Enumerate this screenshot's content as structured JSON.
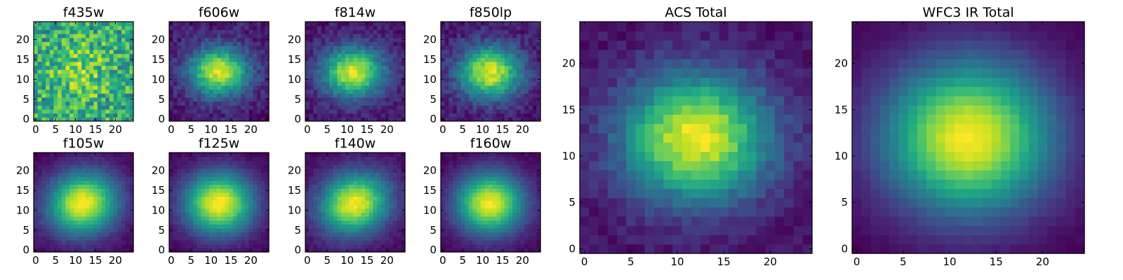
{
  "chart_data": [
    {
      "type": "heatmap",
      "title": "f435w",
      "xticks": [
        "0",
        "5",
        "10",
        "15",
        "20"
      ],
      "yticks": [
        "0",
        "5",
        "10",
        "15",
        "20"
      ],
      "grid": false,
      "colormap": "viridis",
      "extent": [
        0,
        24
      ],
      "center": [
        11.5,
        11.8
      ],
      "sigma_x": 6.0,
      "sigma_y": 6.0,
      "noise": 0.55,
      "tilt": 0.0,
      "background": 0.55,
      "seed": 1
    },
    {
      "type": "heatmap",
      "title": "f606w",
      "xticks": [
        "0",
        "5",
        "10",
        "15",
        "20"
      ],
      "yticks": [
        "0",
        "5",
        "10",
        "15",
        "20"
      ],
      "grid": false,
      "colormap": "viridis",
      "extent": [
        0,
        24
      ],
      "center": [
        12.0,
        12.0
      ],
      "sigma_x": 5.2,
      "sigma_y": 4.2,
      "noise": 0.09,
      "tilt": 0.0,
      "background": 0.05,
      "seed": 2
    },
    {
      "type": "heatmap",
      "title": "f814w",
      "xticks": [
        "0",
        "5",
        "10",
        "15",
        "20"
      ],
      "yticks": [
        "0",
        "5",
        "10",
        "15",
        "20"
      ],
      "grid": false,
      "colormap": "viridis",
      "extent": [
        0,
        24
      ],
      "center": [
        11.5,
        11.8
      ],
      "sigma_x": 5.4,
      "sigma_y": 4.4,
      "noise": 0.08,
      "tilt": 0.0,
      "background": 0.05,
      "seed": 3
    },
    {
      "type": "heatmap",
      "title": "f850lp",
      "xticks": [
        "0",
        "5",
        "10",
        "15",
        "20"
      ],
      "yticks": [
        "0",
        "5",
        "10",
        "15",
        "20"
      ],
      "grid": false,
      "colormap": "viridis",
      "extent": [
        0,
        24
      ],
      "center": [
        11.8,
        11.8
      ],
      "sigma_x": 5.4,
      "sigma_y": 4.5,
      "noise": 0.09,
      "tilt": 0.0,
      "background": 0.05,
      "seed": 4
    },
    {
      "type": "heatmap",
      "title": "ACS Total",
      "xticks": [
        "0",
        "5",
        "10",
        "15",
        "20"
      ],
      "yticks": [
        "0",
        "5",
        "10",
        "15",
        "20"
      ],
      "grid": false,
      "colormap": "viridis",
      "extent": [
        0,
        24
      ],
      "center": [
        12.0,
        12.0
      ],
      "sigma_x": 5.6,
      "sigma_y": 4.8,
      "noise": 0.06,
      "tilt": 0.0,
      "background": 0.05,
      "seed": 5
    },
    {
      "type": "heatmap",
      "title": "f105w",
      "xticks": [
        "0",
        "5",
        "10",
        "15",
        "20"
      ],
      "yticks": [
        "0",
        "5",
        "10",
        "15",
        "20"
      ],
      "grid": false,
      "colormap": "viridis",
      "extent": [
        0,
        24
      ],
      "center": [
        11.8,
        11.8
      ],
      "sigma_x": 6.2,
      "sigma_y": 5.4,
      "noise": 0.03,
      "tilt": 0.25,
      "background": 0.02,
      "seed": 6
    },
    {
      "type": "heatmap",
      "title": "f125w",
      "xticks": [
        "0",
        "5",
        "10",
        "15",
        "20"
      ],
      "yticks": [
        "0",
        "5",
        "10",
        "15",
        "20"
      ],
      "grid": false,
      "colormap": "viridis",
      "extent": [
        0,
        24
      ],
      "center": [
        12.0,
        11.8
      ],
      "sigma_x": 6.2,
      "sigma_y": 5.5,
      "noise": 0.03,
      "tilt": 0.0,
      "background": 0.02,
      "seed": 7
    },
    {
      "type": "heatmap",
      "title": "f140w",
      "xticks": [
        "0",
        "5",
        "10",
        "15",
        "20"
      ],
      "yticks": [
        "0",
        "5",
        "10",
        "15",
        "20"
      ],
      "grid": false,
      "colormap": "viridis",
      "extent": [
        0,
        24
      ],
      "center": [
        11.8,
        11.8
      ],
      "sigma_x": 6.2,
      "sigma_y": 5.2,
      "noise": 0.04,
      "tilt": 0.35,
      "background": 0.02,
      "seed": 8
    },
    {
      "type": "heatmap",
      "title": "f160w",
      "xticks": [
        "0",
        "5",
        "10",
        "15",
        "20"
      ],
      "yticks": [
        "0",
        "5",
        "10",
        "15",
        "20"
      ],
      "grid": false,
      "colormap": "viridis",
      "extent": [
        0,
        24
      ],
      "center": [
        11.8,
        11.8
      ],
      "sigma_x": 6.0,
      "sigma_y": 5.4,
      "noise": 0.03,
      "tilt": 0.0,
      "background": 0.02,
      "seed": 9
    },
    {
      "type": "heatmap",
      "title": "WFC3 IR Total",
      "xticks": [
        "0",
        "5",
        "10",
        "15",
        "20"
      ],
      "yticks": [
        "0",
        "5",
        "10",
        "15",
        "20"
      ],
      "grid": false,
      "colormap": "viridis",
      "extent": [
        0,
        24
      ],
      "center": [
        12.0,
        12.0
      ],
      "sigma_x": 6.4,
      "sigma_y": 5.8,
      "noise": 0.015,
      "tilt": 0.0,
      "background": 0.02,
      "seed": 10
    }
  ]
}
